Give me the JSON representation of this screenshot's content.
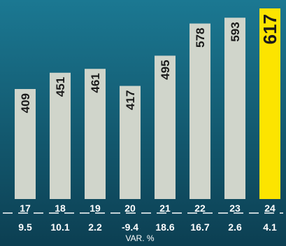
{
  "chart_data": {
    "type": "bar",
    "title": "",
    "xlabel": "",
    "ylabel": "",
    "categories": [
      "17",
      "18",
      "19",
      "20",
      "21",
      "22",
      "23",
      "24"
    ],
    "values": [
      409,
      451,
      461,
      417,
      495,
      578,
      593,
      617
    ],
    "variation": [
      "9.5",
      "10.1",
      "2.2",
      "-9.4",
      "18.6",
      "16.7",
      "2.6",
      "4.1"
    ],
    "variation_label": "VAR. %",
    "ylim": [
      0,
      617
    ],
    "grid": false,
    "legend": "none",
    "highlight_index": 7
  },
  "colors": {
    "background_top": "#1b7892",
    "background_bottom": "#0c3f52",
    "bar": "#d0d5cb",
    "bar_highlight": "#fce400",
    "bar_text": "#1a1a1a",
    "axis_text": "#ffffff"
  }
}
